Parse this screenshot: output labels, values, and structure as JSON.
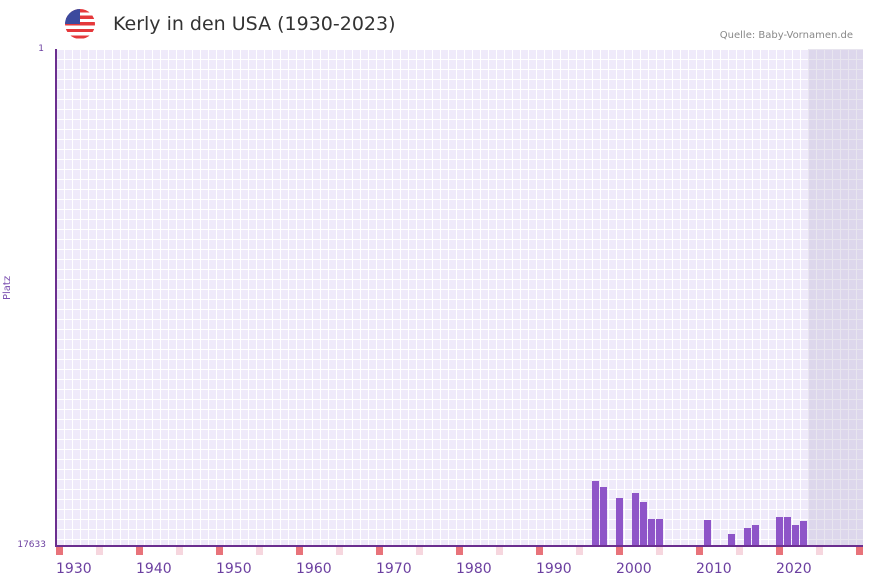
{
  "header": {
    "title": "Kerly in den USA (1930-2023)",
    "source": "Quelle: Baby-Vornamen.de",
    "flag_icon": "us-flag-icon"
  },
  "chart_data": {
    "type": "bar",
    "title": "Kerly in den USA (1930-2023)",
    "xlabel": "",
    "ylabel": "Platz",
    "ylim": [
      17633,
      1
    ],
    "y_ticks": [
      "1",
      "17633"
    ],
    "x_ticks": [
      "1930",
      "1940",
      "1950",
      "1960",
      "1970",
      "1980",
      "1990",
      "2000",
      "2010",
      "2020"
    ],
    "grid": true,
    "categories": [
      1995,
      1996,
      1998,
      2000,
      2001,
      2002,
      2003,
      2009,
      2012,
      2014,
      2015,
      2018,
      2019,
      2020,
      2021
    ],
    "values": [
      15360,
      15575,
      15965,
      15790,
      16105,
      16710,
      16710,
      16745,
      17245,
      17030,
      16925,
      16640,
      16640,
      16925,
      16780
    ],
    "colors": {
      "bar": "#8e55c8",
      "axis": "#6b2e8f",
      "decade_marker": "#e8737a",
      "half_decade_marker": "#f6d6de"
    }
  }
}
